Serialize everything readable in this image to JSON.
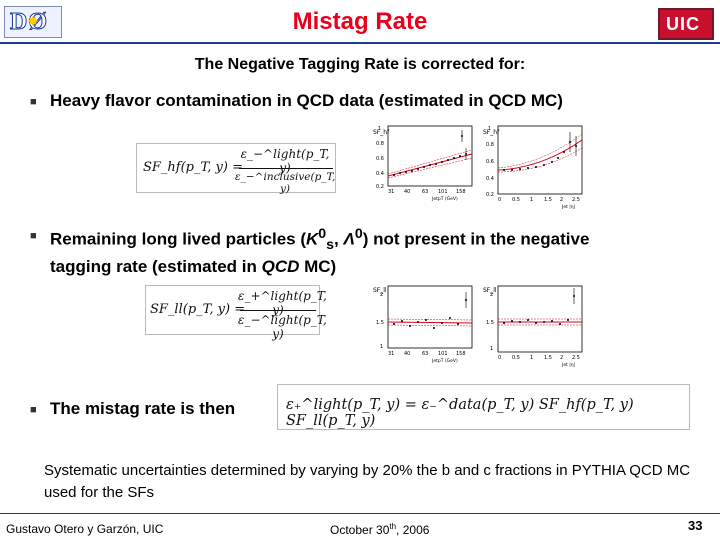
{
  "header": {
    "title": "Mistag Rate",
    "left_logo_text": "DØ",
    "right_logo_text": "UIC"
  },
  "subtitle": "The Negative Tagging Rate is corrected for:",
  "bullets": [
    {
      "text": "Heavy flavor contamination in QCD data (estimated in QCD MC)"
    },
    {
      "text_a": "Remaining long lived particles (",
      "k": "K",
      "k_sup": "0",
      "k_sub": "s",
      "sep": ", ",
      "lam": "Λ",
      "lam_sup": "0",
      "text_b": ") not present in the negative",
      "text_c": "tagging rate (estimated in ",
      "text_d": "QCD",
      "text_e": " MC)"
    },
    {
      "text": "The mistag rate is then"
    }
  ],
  "formulas": {
    "shf": {
      "lhs": "SF_hf(p_T, y) =",
      "num": "ε_−^light(p_T, y)",
      "den": "ε_−^inclusive(p_T, y)"
    },
    "sfll": {
      "lhs": "SF_ll(p_T, y) =",
      "num": "ε_+^light(p_T, y)",
      "den": "ε_−^light(p_T, y)"
    },
    "mistag": {
      "text": "ε₊^light(p_T, y) = ε₋^data(p_T, y) SF_hf(p_T, y) SF_ll(p_T, y)"
    }
  },
  "plots": {
    "hf_pt": {
      "ylabel": "SF_hf",
      "y_ticks": [
        "1",
        "0.8",
        "0.6",
        "0.4",
        "0.2"
      ],
      "x_ticks": [
        "31",
        "40",
        "63",
        "101",
        "158"
      ],
      "xlabel": "JetpT (GeV)"
    },
    "hf_eta": {
      "ylabel": "SF_hf",
      "y_ticks": [
        "1",
        "0.8",
        "0.6",
        "0.4",
        "0.2"
      ],
      "x_ticks": [
        "0",
        "0.5",
        "1",
        "1.5",
        "2",
        "2.5"
      ],
      "xlabel": "Jet |η|"
    },
    "ll_pt": {
      "ylabel": "SF_ll",
      "y_ticks": [
        "2",
        "1.5",
        "1"
      ],
      "x_ticks": [
        "31",
        "40",
        "63",
        "101",
        "158"
      ],
      "xlabel": "JetpT (GeV)"
    },
    "ll_eta": {
      "ylabel": "SF_ll",
      "y_ticks": [
        "2",
        "1.5",
        "1"
      ],
      "x_ticks": [
        "0",
        "0.5",
        "1",
        "1.5",
        "2",
        "2.5"
      ],
      "xlabel": "Jet |η|"
    }
  },
  "note": "Systematic uncertainties determined by varying by 20% the b and c fractions in PYTHIA QCD MC used for the SFs",
  "footer": {
    "author": "Gustavo Otero y Garzón, UIC",
    "date_a": "October 30",
    "date_sup": "th",
    "date_b": ", 2006",
    "page": "33"
  },
  "colors": {
    "title": "#e8001c",
    "rule": "#1a3e8c",
    "fit": "#d8001a"
  },
  "icons": {
    "bullet": "square-bullet-icon"
  }
}
